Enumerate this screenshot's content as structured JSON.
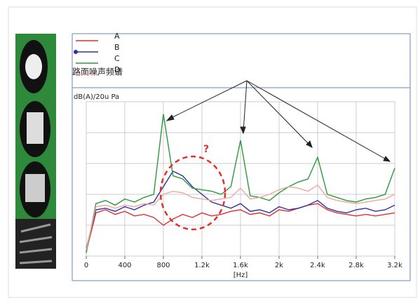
{
  "chart_data": {
    "type": "line",
    "title": "路面噪声频谱",
    "y_label": "dB(A)/20u Pa",
    "x_label": "[Hz]",
    "annotation": "?",
    "x": [
      0,
      100,
      200,
      300,
      400,
      500,
      600,
      700,
      800,
      900,
      1000,
      1100,
      1200,
      1300,
      1400,
      1500,
      1600,
      1700,
      1800,
      1900,
      2000,
      2100,
      2200,
      2300,
      2400,
      2500,
      2600,
      2700,
      2800,
      2900,
      3000,
      3100,
      3200
    ],
    "xlim": [
      0,
      3200
    ],
    "xticks": [
      0,
      400,
      800,
      {
        "value": 1200,
        "label": "1.2k"
      },
      {
        "value": 1600,
        "label": "1.6k"
      },
      {
        "value": 2000,
        "label": "2k"
      },
      {
        "value": 2400,
        "label": "2.4k"
      },
      {
        "value": 2800,
        "label": "2.8k"
      },
      {
        "value": 3200,
        "label": "3.2k"
      }
    ],
    "ylim": [
      0,
      100
    ],
    "yticks": [
      0,
      20,
      40,
      60,
      80,
      100
    ],
    "grid": true,
    "series": [
      {
        "name": "A",
        "color": "#e03030",
        "values": [
          3,
          28,
          30,
          27,
          29,
          26,
          27,
          25,
          20,
          24,
          27,
          25,
          28,
          26,
          27,
          29,
          30,
          27,
          28,
          26,
          30,
          29,
          31,
          33,
          34,
          30,
          28,
          27,
          26,
          27,
          26,
          27,
          28
        ]
      },
      {
        "name": "B",
        "color": "#3030a0",
        "values": [
          5,
          30,
          31,
          29,
          32,
          30,
          33,
          35,
          45,
          55,
          52,
          45,
          40,
          35,
          33,
          31,
          34,
          29,
          30,
          28,
          32,
          30,
          31,
          33,
          36,
          31,
          29,
          28,
          30,
          31,
          29,
          30,
          33
        ]
      },
      {
        "name": "C",
        "color": "#2a9a3a",
        "values": [
          2,
          34,
          36,
          33,
          37,
          35,
          38,
          40,
          92,
          52,
          50,
          44,
          43,
          42,
          40,
          45,
          75,
          39,
          38,
          36,
          41,
          45,
          48,
          50,
          64,
          40,
          38,
          36,
          35,
          37,
          38,
          40,
          57
        ]
      },
      {
        "name": "D",
        "color": "#f0a8a0",
        "values": [
          4,
          32,
          33,
          31,
          33,
          32,
          34,
          33,
          40,
          42,
          41,
          38,
          37,
          36,
          37,
          38,
          44,
          37,
          38,
          40,
          43,
          45,
          44,
          42,
          46,
          38,
          36,
          35,
          34,
          35,
          36,
          37,
          40
        ]
      }
    ]
  }
}
